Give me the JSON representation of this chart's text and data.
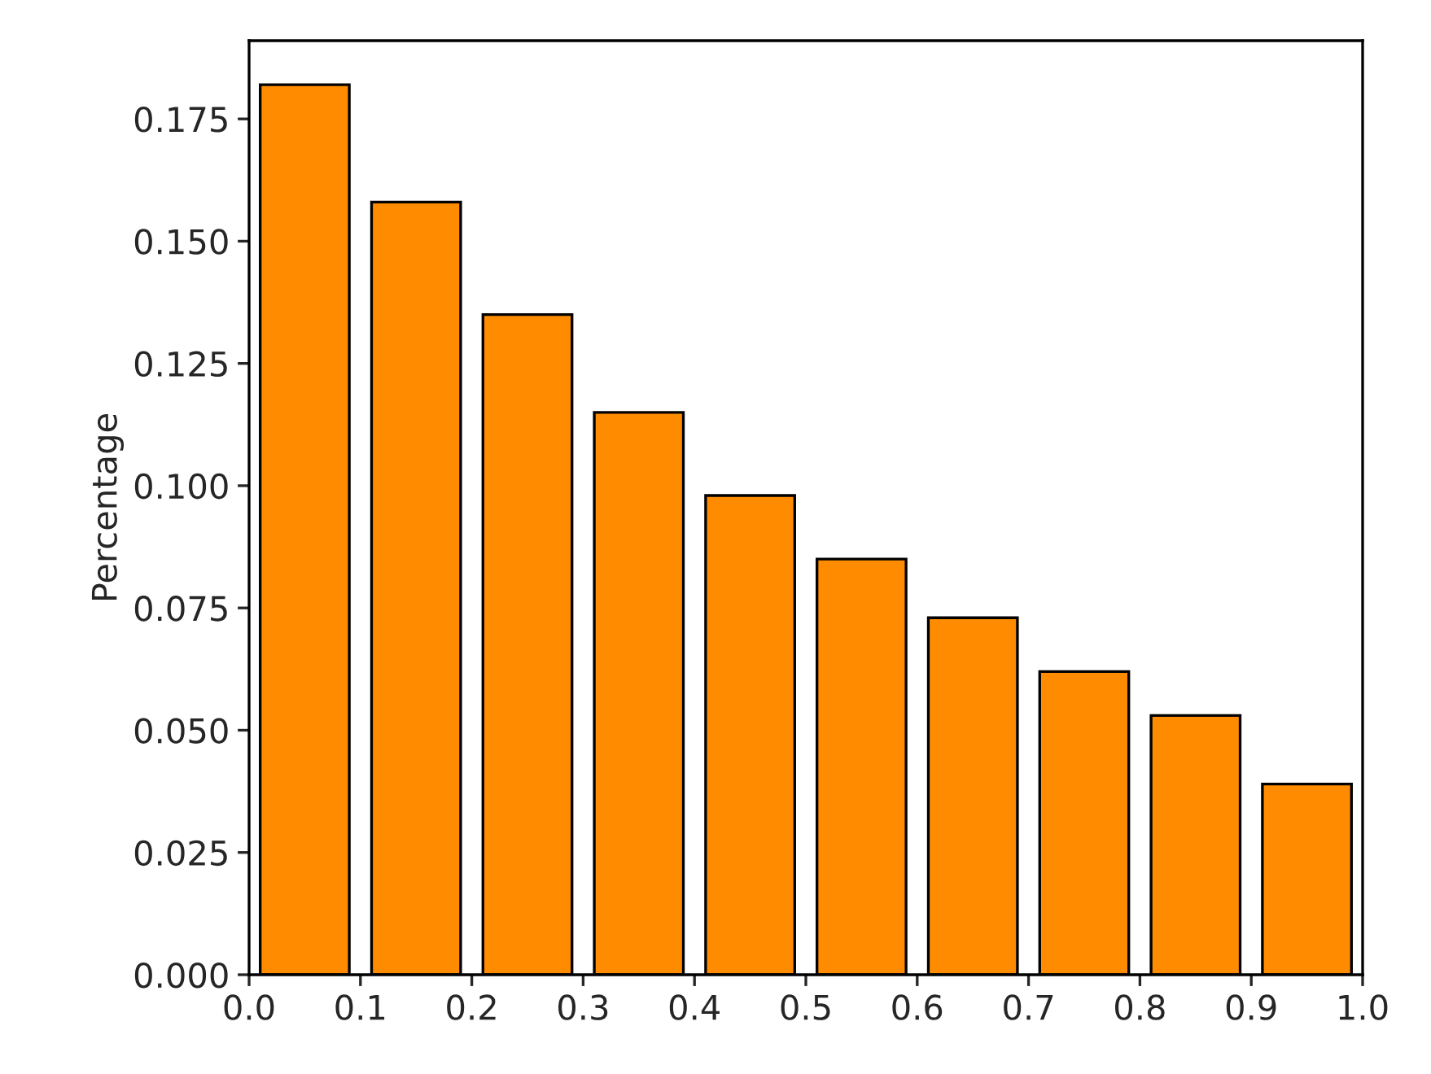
{
  "chart_data": {
    "type": "histogram",
    "ylabel": "Percentage",
    "bins": [
      0.0,
      0.1,
      0.2,
      0.3,
      0.4,
      0.5,
      0.6,
      0.7,
      0.8,
      0.9,
      1.0
    ],
    "values": [
      0.182,
      0.158,
      0.135,
      0.115,
      0.098,
      0.085,
      0.073,
      0.062,
      0.053,
      0.039
    ],
    "color": "#ff8c00",
    "xlim": [
      0.0,
      1.0
    ],
    "ylim": [
      0.0,
      0.191
    ],
    "xticks": [
      {
        "value": 0.0,
        "label": "0.0"
      },
      {
        "value": 0.1,
        "label": "0.1"
      },
      {
        "value": 0.2,
        "label": "0.2"
      },
      {
        "value": 0.3,
        "label": "0.3"
      },
      {
        "value": 0.4,
        "label": "0.4"
      },
      {
        "value": 0.5,
        "label": "0.5"
      },
      {
        "value": 0.6,
        "label": "0.6"
      },
      {
        "value": 0.7,
        "label": "0.7"
      },
      {
        "value": 0.8,
        "label": "0.8"
      },
      {
        "value": 0.9,
        "label": "0.9"
      },
      {
        "value": 1.0,
        "label": "1.0"
      }
    ],
    "yticks": [
      {
        "value": 0.0,
        "label": "0.000"
      },
      {
        "value": 0.025,
        "label": "0.025"
      },
      {
        "value": 0.05,
        "label": "0.050"
      },
      {
        "value": 0.075,
        "label": "0.075"
      },
      {
        "value": 0.1,
        "label": "0.100"
      },
      {
        "value": 0.125,
        "label": "0.125"
      },
      {
        "value": 0.15,
        "label": "0.150"
      },
      {
        "value": 0.175,
        "label": "0.175"
      }
    ],
    "grid": false
  }
}
